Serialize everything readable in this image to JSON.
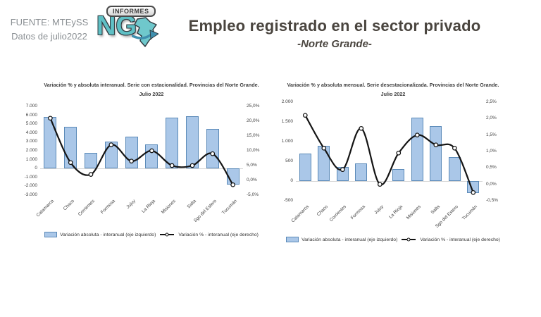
{
  "header": {
    "source_line1": "FUENTE: MTEySS",
    "source_line2": "Datos de julio2022",
    "logo": {
      "top_label": "INFORMES",
      "main_label": "NG"
    },
    "title": "Empleo registrado en el sector privado",
    "subtitle": "-Norte Grande-"
  },
  "colors": {
    "bar_fill": "#aac7e8",
    "bar_border": "#5b8ab8",
    "line": "#141414",
    "grid": "#d6d6d6",
    "chart_title": "#3f3f3f",
    "title_text": "#4a453f",
    "source_text": "#8b9094",
    "logo_teal": "#5fc0c5",
    "logo_dark": "#323c42"
  },
  "chart_data": [
    {
      "type": "bar+line",
      "title": "Variación % y absoluta interanual. Serie con estacionalidad. Provincias del Norte Grande.",
      "subtitle": "Julio 2022",
      "categories": [
        "Catamarca",
        "Chaco",
        "Corrientes",
        "Formosa",
        "Jujuy",
        "La Rioja",
        "Misiones",
        "Salta",
        "Sgo del Estero",
        "Tucumán"
      ],
      "series": [
        {
          "name": "Variación absoluta - interanual (eje izquierdo)",
          "type": "bar",
          "axis": "left",
          "values": [
            5800,
            4700,
            1800,
            3000,
            3600,
            2700,
            5700,
            5900,
            4500,
            -1800
          ]
        },
        {
          "name": "Variación % - interanual (eje derecho)",
          "type": "line",
          "axis": "right",
          "values": [
            21,
            6,
            2,
            12,
            6.5,
            10,
            5,
            5,
            9,
            -1.5
          ]
        }
      ],
      "left_axis": {
        "min": -3000,
        "max": 7000,
        "ticks": [
          {
            "v": 7000,
            "label": "7.000"
          },
          {
            "v": 6000,
            "label": "6.000"
          },
          {
            "v": 5000,
            "label": "5.000"
          },
          {
            "v": 4000,
            "label": "4.000"
          },
          {
            "v": 3000,
            "label": "3.000"
          },
          {
            "v": 2000,
            "label": "2.000"
          },
          {
            "v": 1000,
            "label": "1.000"
          },
          {
            "v": 0,
            "label": "0"
          },
          {
            "v": -1000,
            "label": "-1.000"
          },
          {
            "v": -2000,
            "label": "-2.000"
          },
          {
            "v": -3000,
            "label": "-3.000"
          }
        ]
      },
      "right_axis": {
        "min": -5,
        "max": 25,
        "ticks": [
          {
            "v": 25,
            "label": "25,0%"
          },
          {
            "v": 20,
            "label": "20,0%"
          },
          {
            "v": 15,
            "label": "15,0%"
          },
          {
            "v": 10,
            "label": "10,0%"
          },
          {
            "v": 5,
            "label": "5,0%"
          },
          {
            "v": 0,
            "label": "0,0%"
          },
          {
            "v": -5,
            "label": "-5,0%"
          }
        ]
      },
      "grid": "zero-line-only",
      "legend_position": "bottom"
    },
    {
      "type": "bar+line",
      "title": "Variación % y absoluta mensual. Serie desestacionalizada. Provincias del Norte Grande.",
      "subtitle": "Julio 2022",
      "categories": [
        "Catamarca",
        "Chaco",
        "Corrientes",
        "Formosa",
        "Jujuy",
        "La Rioja",
        "Misiones",
        "Salta",
        "Sgo del Estero",
        "Tucumán"
      ],
      "series": [
        {
          "name": "Variación absoluta - interanual (eje izquierdo)",
          "type": "bar",
          "axis": "left",
          "values": [
            700,
            900,
            350,
            450,
            0,
            300,
            1600,
            1400,
            600,
            -300
          ]
        },
        {
          "name": "Variación % - interanual (eje derecho)",
          "type": "line",
          "axis": "right",
          "values": [
            2.1,
            1.1,
            0.45,
            1.7,
            0,
            0.95,
            1.5,
            1.2,
            1.1,
            -0.25
          ]
        }
      ],
      "left_axis": {
        "min": -500,
        "max": 2000,
        "ticks": [
          {
            "v": 2000,
            "label": "2.000"
          },
          {
            "v": 1500,
            "label": "1.500"
          },
          {
            "v": 1000,
            "label": "1.000"
          },
          {
            "v": 500,
            "label": "500"
          },
          {
            "v": 0,
            "label": "0"
          },
          {
            "v": -500,
            "label": "-500"
          }
        ]
      },
      "right_axis": {
        "min": -0.5,
        "max": 2.5,
        "ticks": [
          {
            "v": 2.5,
            "label": "2,5%"
          },
          {
            "v": 2,
            "label": "2,0%"
          },
          {
            "v": 1.5,
            "label": "1,5%"
          },
          {
            "v": 1,
            "label": "1,0%"
          },
          {
            "v": 0.5,
            "label": "0,5%"
          },
          {
            "v": 0,
            "label": "0,0%"
          },
          {
            "v": -0.5,
            "label": "-0,5%"
          }
        ]
      },
      "grid": "zero-line-only",
      "legend_position": "bottom"
    }
  ]
}
